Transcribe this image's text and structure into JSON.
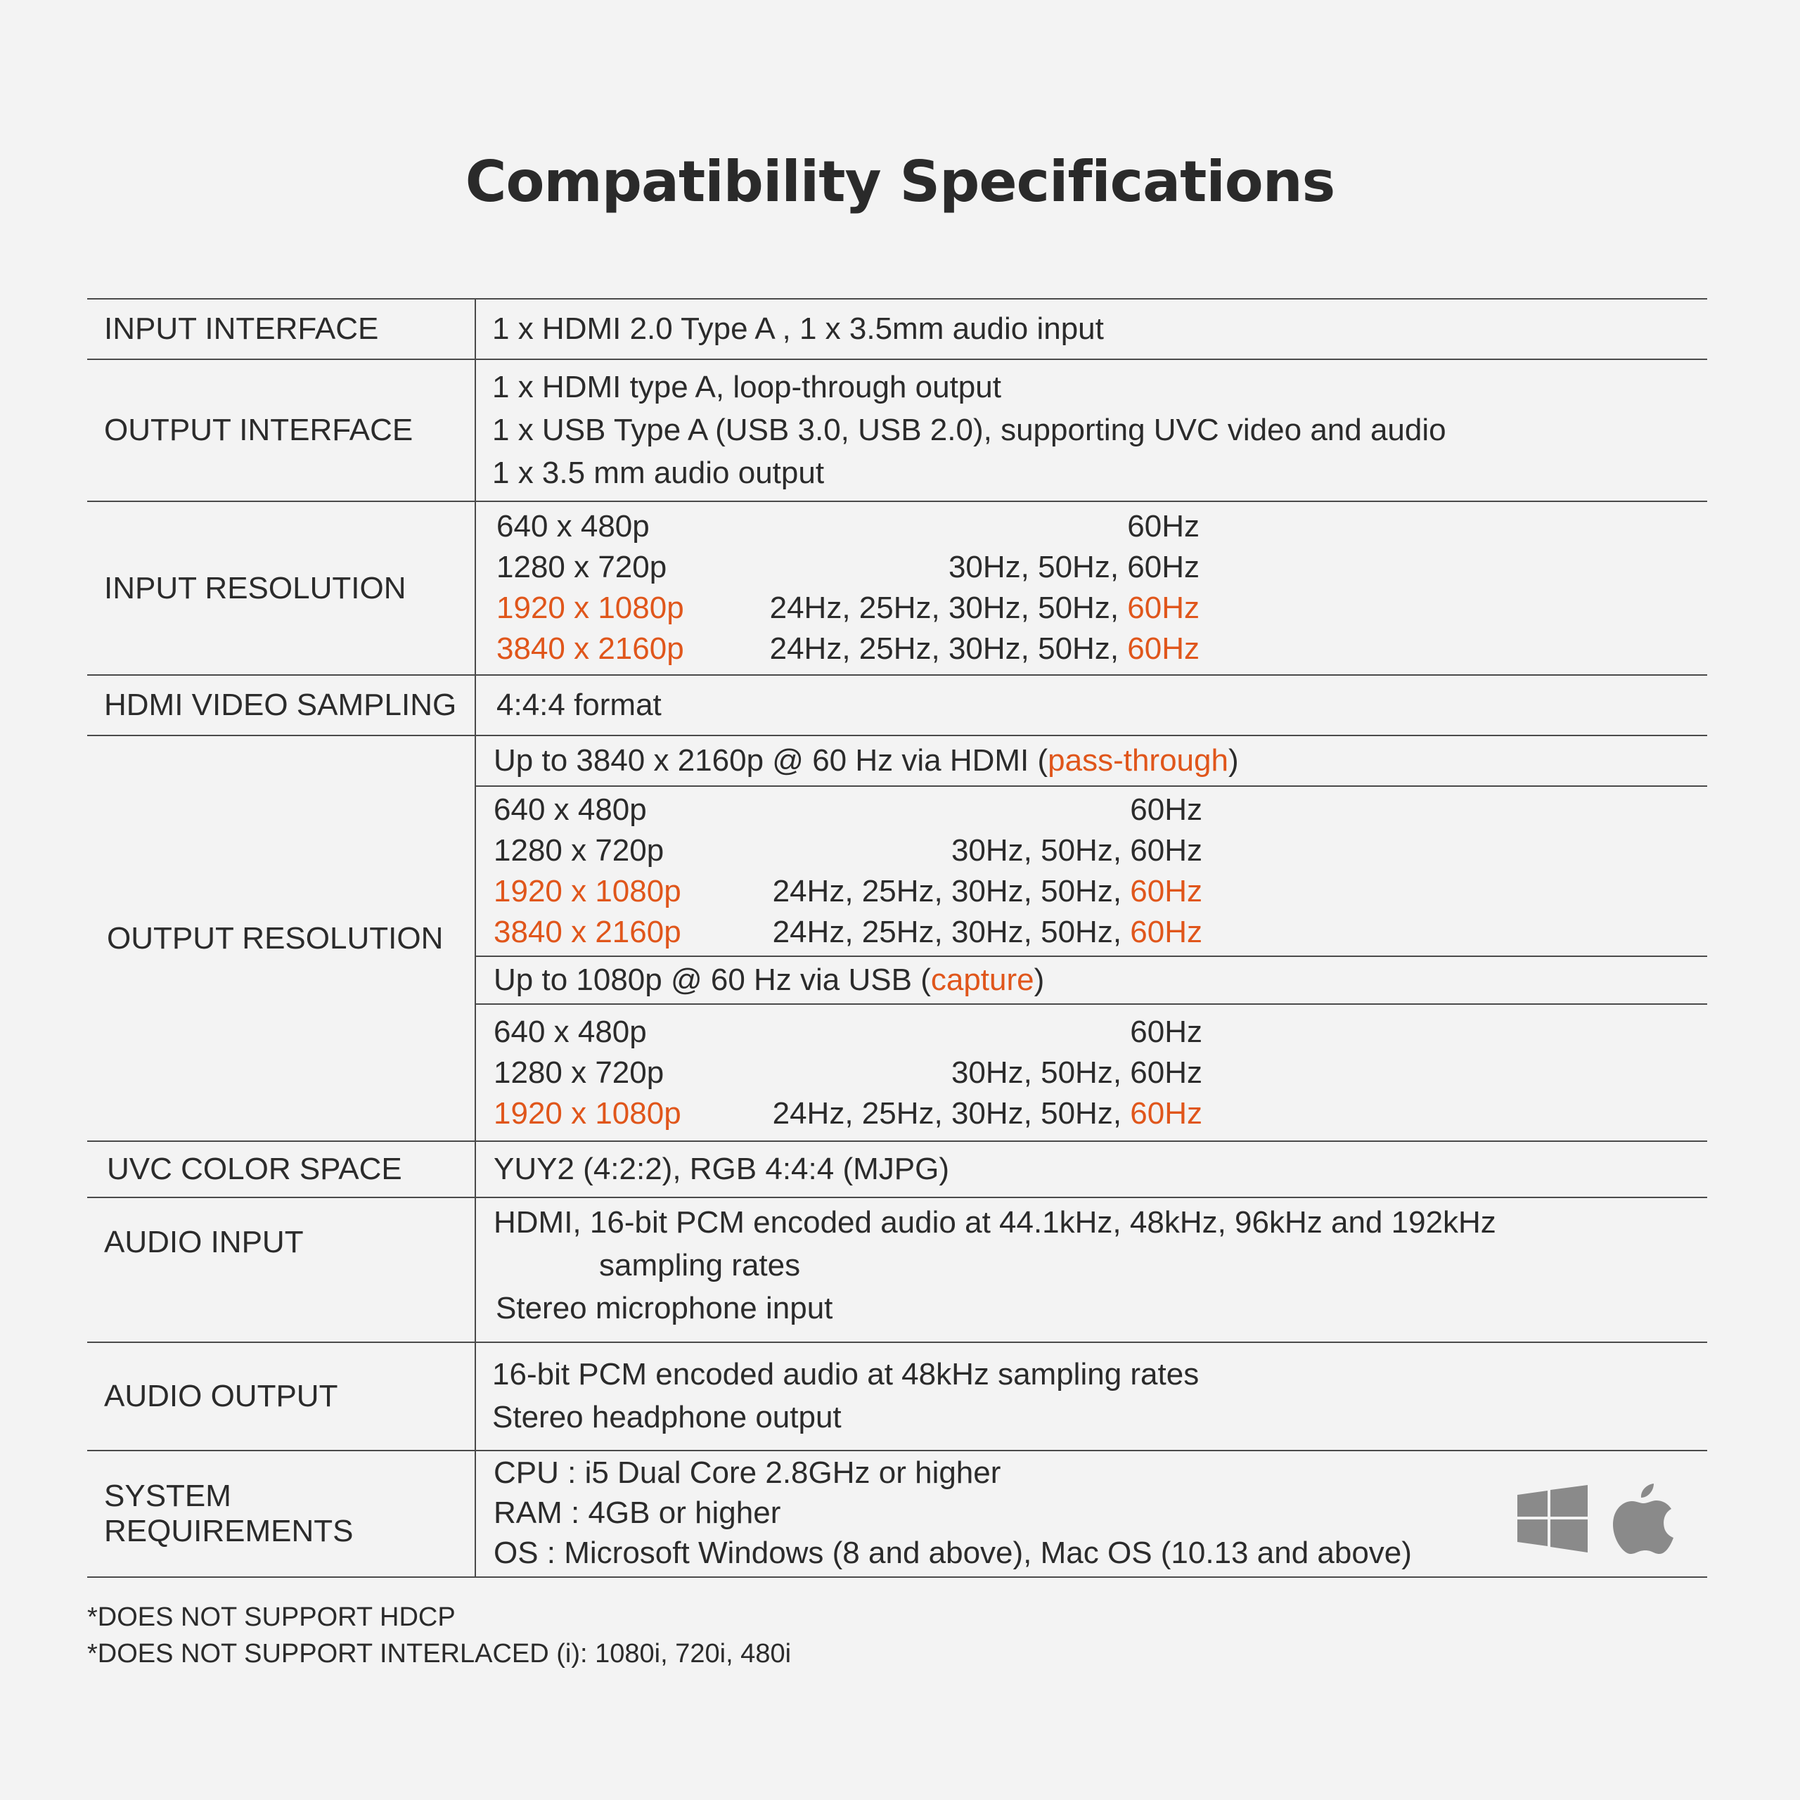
{
  "title": "Compatibility Specifications",
  "rows": {
    "input_interface": {
      "label": "INPUT INTERFACE",
      "value": "1 x HDMI 2.0 Type A , 1 x 3.5mm  audio input"
    },
    "output_interface": {
      "label": "OUTPUT  INTERFACE",
      "lines": [
        "1 x HDMI type A, loop-through  output",
        "1 x USB Type A (USB 3.0, USB 2.0), supporting UVC video and audio",
        "1 x 3.5 mm audio output"
      ]
    },
    "input_resolution": {
      "label": "INPUT RESOLUTION",
      "items": [
        {
          "res": "640 x 480p",
          "hz_prefix": "",
          "hz_last": "60Hz"
        },
        {
          "res": "1280 x 720p",
          "hz_prefix": "30Hz, 50Hz, ",
          "hz_last": "60Hz"
        },
        {
          "res": "1920 x 1080p",
          "hz_prefix": "24Hz, 25Hz, 30Hz, 50Hz, ",
          "hz_last": "60Hz"
        },
        {
          "res": "3840 x 2160p",
          "hz_prefix": "24Hz, 25Hz, 30Hz, 50Hz, ",
          "hz_last": "60Hz"
        }
      ]
    },
    "hdmi_sampling": {
      "label": "HDMI VIDEO SAMPLING",
      "value": "4:4:4 format"
    },
    "output_resolution": {
      "label": "OUTPUT RESOLUTION",
      "hdmi_header": {
        "prefix": "Up to 3840 x 2160p @ 60 Hz via HDMI (",
        "highlight": "pass-through",
        "suffix": ")"
      },
      "hdmi_items": [
        {
          "res": "640 x 480p",
          "hz_prefix": "",
          "hz_last": "60Hz"
        },
        {
          "res": "1280 x 720p",
          "hz_prefix": "30Hz, 50Hz, ",
          "hz_last": "60Hz"
        },
        {
          "res": "1920 x 1080p",
          "hz_prefix": "24Hz, 25Hz, 30Hz, 50Hz, ",
          "hz_last": "60Hz"
        },
        {
          "res": "3840 x 2160p",
          "hz_prefix": "24Hz, 25Hz, 30Hz, 50Hz, ",
          "hz_last": "60Hz"
        }
      ],
      "usb_header": {
        "prefix": "Up to 1080p @ 60 Hz via USB (",
        "highlight": "capture",
        "suffix": ")"
      },
      "usb_items": [
        {
          "res": "640 x 480p",
          "hz_prefix": "",
          "hz_last": "60Hz"
        },
        {
          "res": "1280 x 720p",
          "hz_prefix": "30Hz, 50Hz, ",
          "hz_last": "60Hz"
        },
        {
          "res": "1920 x 1080p",
          "hz_prefix": "24Hz, 25Hz, 30Hz, 50Hz, ",
          "hz_last": "60Hz"
        }
      ]
    },
    "uvc_color": {
      "label": "UVC COLOR SPACE",
      "value": "YUY2 (4:2:2), RGB 4:4:4 (MJPG)"
    },
    "audio_input": {
      "label": "AUDIO INPUT",
      "line1": "HDMI, 16-bit PCM encoded audio at 44.1kHz, 48kHz, 96kHz and 192kHz",
      "line2": "sampling rates",
      "line3": "Stereo  microphone  input"
    },
    "audio_output": {
      "label": "AUDIO OUTPUT",
      "lines": [
        "16-bit PCM encoded audio at 48kHz sampling rates",
        "Stereo  headphone  output"
      ]
    },
    "system": {
      "label": "SYSTEM REQUIREMENTS",
      "lines": [
        "CPU : i5 Dual Core 2.8GHz or higher",
        "RAM : 4GB or higher",
        "OS : Microsoft  Windows  (8 and above), Mac OS (10.13 and above)"
      ],
      "icons": [
        "windows-icon",
        "apple-icon"
      ]
    }
  },
  "notes": [
    "*DOES NOT SUPPORT HDCP",
    "*DOES NOT SUPPORT INTERLACED (i): 1080i, 720i, 480i"
  ],
  "colors": {
    "accent": "#e0561b",
    "text": "#2b2b2b",
    "background": "#f3f3f3",
    "icon": "#8a8a8a"
  }
}
